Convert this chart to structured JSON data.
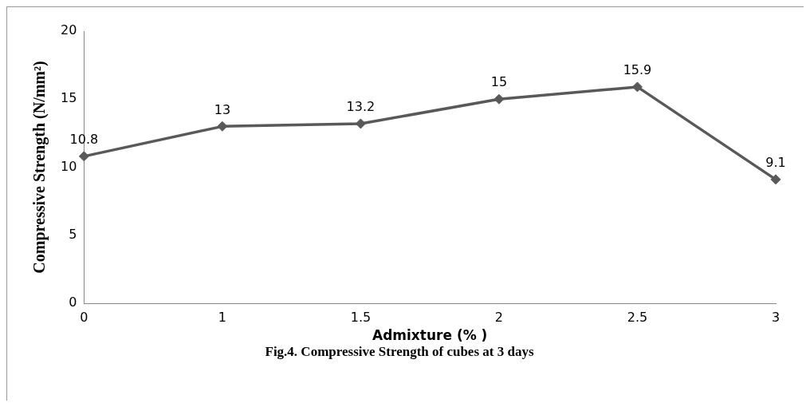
{
  "chart_data": {
    "type": "line",
    "title": "Fig.4. Compressive Strength of cubes at 3 days",
    "xlabel": "Admixture (% )",
    "ylabel": "Compressive Strength (N/mm²)",
    "categories": [
      "0",
      "1",
      "1.5",
      "2",
      "2.5",
      "3"
    ],
    "series": [
      {
        "color": "#595959",
        "values": [
          10.8,
          13,
          13.2,
          15,
          15.9,
          9.1
        ]
      }
    ],
    "ylim": [
      0,
      20
    ],
    "yticks": [
      0,
      5,
      10,
      15,
      20
    ],
    "grid": false,
    "legend": false,
    "marker": "diamond",
    "line_style": "solid",
    "data_labels": true
  }
}
